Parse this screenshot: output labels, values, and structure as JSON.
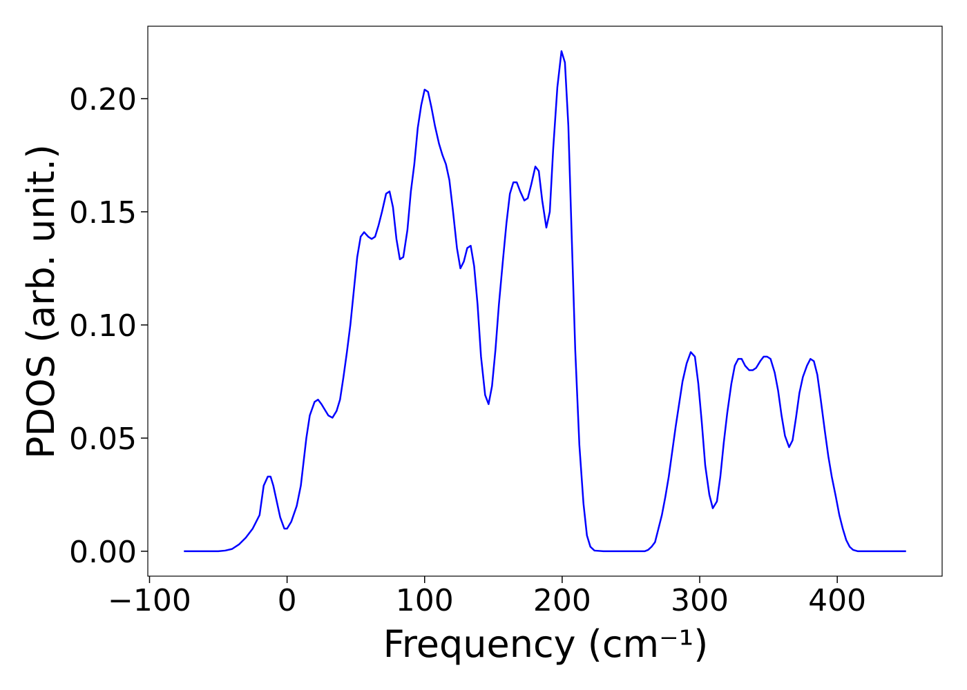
{
  "chart_data": {
    "type": "line",
    "x_label": "Frequency (cm⁻¹)",
    "y_label": "PDOS (arb. unit.)",
    "color": "#0000ff",
    "xlim": [
      -101.25,
      476.25
    ],
    "ylim": [
      -0.011,
      0.232
    ],
    "xticks": [
      {
        "value": -100,
        "label": "−100"
      },
      0,
      100,
      200,
      300,
      400
    ],
    "yticks": [
      {
        "value": 0,
        "label": "0.00"
      },
      {
        "value": 0.05,
        "label": "0.05"
      },
      {
        "value": 0.1,
        "label": "0.10"
      },
      {
        "value": 0.15,
        "label": "0.15"
      },
      {
        "value": 0.2,
        "label": "0.20"
      }
    ],
    "x": [
      -75,
      -60,
      -50,
      -45,
      -40,
      -35,
      -30,
      -25,
      -20,
      -17,
      -14,
      -12,
      -10,
      -5,
      -2,
      0,
      3,
      7,
      10,
      14,
      16.5,
      20,
      22.5,
      25,
      30,
      33,
      36,
      38.5,
      41,
      43.5,
      46,
      48.5,
      51,
      53.5,
      56,
      59,
      61.5,
      64,
      66.5,
      69,
      72,
      74.5,
      77,
      79.5,
      82,
      84.5,
      87.5,
      90,
      92.5,
      95,
      97.5,
      100,
      102.5,
      105,
      107.5,
      110.5,
      113,
      115.5,
      118,
      120.5,
      123.5,
      126,
      128.5,
      131,
      133.5,
      136,
      138.5,
      141,
      144,
      146.5,
      149,
      151.5,
      154,
      157,
      159.5,
      162,
      164.5,
      167,
      169.5,
      172.5,
      175,
      177.5,
      180.5,
      183,
      185.5,
      188.5,
      191,
      193.5,
      196.5,
      199.5,
      202,
      204.5,
      207,
      209.5,
      212.5,
      215.5,
      218,
      220.5,
      223.5,
      230,
      250,
      260,
      262.5,
      265,
      267.5,
      270,
      272.5,
      275,
      277.5,
      280,
      282.5,
      285,
      287.5,
      290.5,
      293.5,
      296.5,
      299,
      301.5,
      304,
      307,
      309.5,
      312.5,
      315,
      317.5,
      320,
      323,
      325.5,
      328,
      330.5,
      333,
      336,
      338.5,
      341,
      344,
      346.5,
      349,
      351.5,
      354.5,
      357,
      359.5,
      362,
      365,
      367.5,
      370,
      372.5,
      375,
      378,
      380.5,
      383,
      385.5,
      388,
      391,
      393.5,
      396,
      399,
      401.5,
      404,
      406.5,
      409,
      411.5,
      415,
      430,
      450
    ],
    "values": [
      0,
      0,
      0,
      0.0003,
      0.001,
      0.003,
      0.006,
      0.01,
      0.016,
      0.029,
      0.033,
      0.033,
      0.029,
      0.015,
      0.01,
      0.01,
      0.013,
      0.02,
      0.029,
      0.05,
      0.06,
      0.066,
      0.067,
      0.065,
      0.06,
      0.059,
      0.062,
      0.067,
      0.077,
      0.088,
      0.1,
      0.115,
      0.13,
      0.139,
      0.141,
      0.139,
      0.138,
      0.139,
      0.144,
      0.15,
      0.158,
      0.159,
      0.152,
      0.138,
      0.129,
      0.13,
      0.142,
      0.159,
      0.171,
      0.187,
      0.197,
      0.204,
      0.203,
      0.196,
      0.188,
      0.18,
      0.175,
      0.171,
      0.164,
      0.151,
      0.134,
      0.125,
      0.128,
      0.134,
      0.135,
      0.126,
      0.109,
      0.086,
      0.069,
      0.065,
      0.073,
      0.089,
      0.109,
      0.129,
      0.145,
      0.158,
      0.163,
      0.163,
      0.159,
      0.155,
      0.156,
      0.162,
      0.17,
      0.168,
      0.155,
      0.143,
      0.15,
      0.178,
      0.205,
      0.221,
      0.216,
      0.188,
      0.138,
      0.089,
      0.047,
      0.021,
      0.007,
      0.002,
      0.0003,
      0,
      0,
      0,
      0.0006,
      0.002,
      0.004,
      0.01,
      0.016,
      0.024,
      0.033,
      0.044,
      0.055,
      0.065,
      0.075,
      0.083,
      0.088,
      0.086,
      0.074,
      0.057,
      0.038,
      0.025,
      0.019,
      0.022,
      0.033,
      0.048,
      0.061,
      0.074,
      0.082,
      0.085,
      0.085,
      0.082,
      0.08,
      0.08,
      0.081,
      0.084,
      0.086,
      0.086,
      0.085,
      0.079,
      0.071,
      0.06,
      0.051,
      0.046,
      0.049,
      0.059,
      0.07,
      0.077,
      0.082,
      0.085,
      0.084,
      0.078,
      0.067,
      0.053,
      0.042,
      0.033,
      0.024,
      0.016,
      0.01,
      0.005,
      0.002,
      0.0006,
      0,
      0,
      0
    ]
  }
}
